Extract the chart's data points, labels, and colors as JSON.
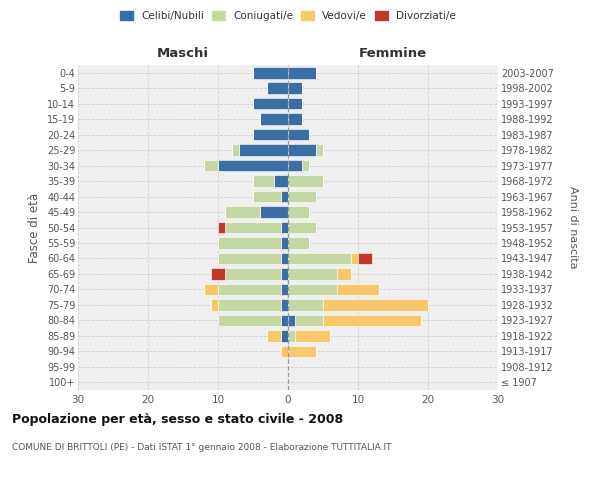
{
  "age_groups": [
    "100+",
    "95-99",
    "90-94",
    "85-89",
    "80-84",
    "75-79",
    "70-74",
    "65-69",
    "60-64",
    "55-59",
    "50-54",
    "45-49",
    "40-44",
    "35-39",
    "30-34",
    "25-29",
    "20-24",
    "15-19",
    "10-14",
    "5-9",
    "0-4"
  ],
  "birth_years": [
    "≤ 1907",
    "1908-1912",
    "1913-1917",
    "1918-1922",
    "1923-1927",
    "1928-1932",
    "1933-1937",
    "1938-1942",
    "1943-1947",
    "1948-1952",
    "1953-1957",
    "1958-1962",
    "1963-1967",
    "1968-1972",
    "1973-1977",
    "1978-1982",
    "1983-1987",
    "1988-1992",
    "1993-1997",
    "1998-2002",
    "2003-2007"
  ],
  "colors": {
    "celibi": "#3a6ea5",
    "coniugati": "#c5d8a4",
    "vedovi": "#f5c96b",
    "divorziati": "#c0392b"
  },
  "maschi": {
    "celibi": [
      0,
      0,
      0,
      1,
      1,
      1,
      1,
      1,
      1,
      1,
      1,
      4,
      1,
      2,
      10,
      7,
      5,
      4,
      5,
      3,
      5
    ],
    "coniugati": [
      0,
      0,
      0,
      0,
      9,
      9,
      9,
      8,
      9,
      9,
      8,
      5,
      4,
      3,
      2,
      1,
      0,
      0,
      0,
      0,
      0
    ],
    "vedovi": [
      0,
      0,
      1,
      2,
      0,
      1,
      2,
      0,
      0,
      0,
      0,
      0,
      0,
      0,
      0,
      0,
      0,
      0,
      0,
      0,
      0
    ],
    "divorziati": [
      0,
      0,
      0,
      0,
      0,
      0,
      0,
      2,
      0,
      0,
      1,
      0,
      0,
      0,
      0,
      0,
      0,
      0,
      0,
      0,
      0
    ]
  },
  "femmine": {
    "celibi": [
      0,
      0,
      0,
      0,
      1,
      0,
      0,
      0,
      0,
      0,
      0,
      0,
      0,
      0,
      2,
      4,
      3,
      2,
      2,
      2,
      4
    ],
    "coniugati": [
      0,
      0,
      0,
      1,
      4,
      5,
      7,
      7,
      9,
      3,
      4,
      3,
      4,
      5,
      1,
      1,
      0,
      0,
      0,
      0,
      0
    ],
    "vedovi": [
      0,
      0,
      4,
      5,
      14,
      15,
      6,
      2,
      1,
      0,
      0,
      0,
      0,
      0,
      0,
      0,
      0,
      0,
      0,
      0,
      0
    ],
    "divorziati": [
      0,
      0,
      0,
      0,
      0,
      0,
      0,
      0,
      2,
      0,
      0,
      0,
      0,
      0,
      0,
      0,
      0,
      0,
      0,
      0,
      0
    ]
  },
  "xlim": 30,
  "title": "Popolazione per età, sesso e stato civile - 2008",
  "subtitle": "COMUNE DI BRITTOLI (PE) - Dati ISTAT 1° gennaio 2008 - Elaborazione TUTTITALIA.IT",
  "ylabel_left": "Fasce di età",
  "ylabel_right": "Anni di nascita",
  "xlabel_left": "Maschi",
  "xlabel_right": "Femmine",
  "bg_color": "#ffffff",
  "plot_bg": "#efefef",
  "grid_color": "#cccccc",
  "legend_labels": [
    "Celibi/Nubili",
    "Coniugati/e",
    "Vedovi/e",
    "Divorziati/e"
  ]
}
